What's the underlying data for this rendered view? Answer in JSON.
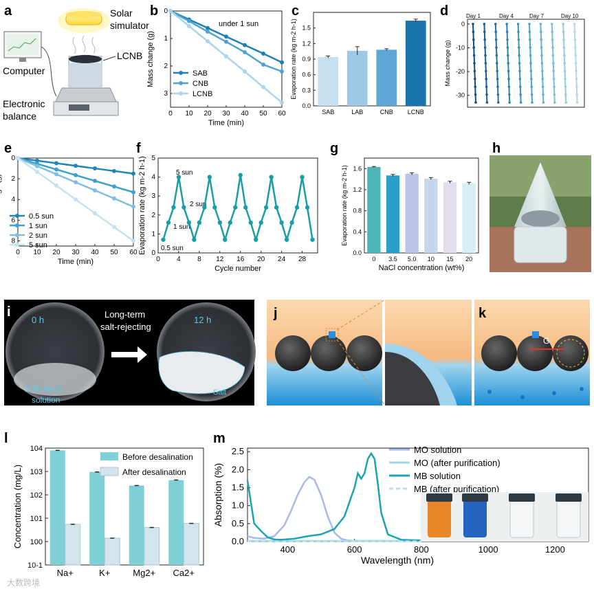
{
  "panels": {
    "a": {
      "letter": "a",
      "solar": "Solar\nsimulator",
      "solar1": "Solar",
      "solar2": "simulator",
      "lcnb": "LCNB",
      "computer": "Computer",
      "balance1": "Electronic",
      "balance2": "balance"
    },
    "b": {
      "letter": "b",
      "note": "under 1 sun"
    },
    "c": {
      "letter": "c"
    },
    "d": {
      "letter": "d",
      "days": [
        "Day 1",
        "Day 4",
        "Day 7",
        "Day 10"
      ]
    },
    "e": {
      "letter": "e"
    },
    "f": {
      "letter": "f",
      "annotations": [
        "5 sun",
        "2 sun",
        "1 sun",
        "0.5 sun"
      ]
    },
    "g": {
      "letter": "g"
    },
    "h": {
      "letter": "h"
    },
    "i": {
      "letter": "i",
      "t0": "0 h",
      "t12": "12 h",
      "arrow1": "Long-term",
      "arrow2": "salt-rejecting",
      "nacl1": "20% NaCl",
      "nacl2": "solution",
      "salt": "Salt"
    },
    "j": {
      "letter": "j"
    },
    "k": {
      "letter": "k",
      "gs": "G"
    },
    "l": {
      "letter": "l"
    },
    "m": {
      "letter": "m"
    }
  },
  "watermark": "大数跨境",
  "chart_data": [
    {
      "id": "b",
      "type": "line",
      "xlabel": "Time (min)",
      "ylabel": "Mass change (g)",
      "x": [
        0,
        10,
        20,
        30,
        40,
        50,
        60
      ],
      "xticks": [
        0,
        10,
        20,
        30,
        40,
        50,
        60
      ],
      "yticks": [
        0,
        1,
        2,
        3
      ],
      "ylim": [
        0,
        3.5
      ],
      "series": [
        {
          "name": "SAB",
          "values": [
            0,
            0.31,
            0.62,
            0.93,
            1.24,
            1.55,
            1.87
          ],
          "color": "#1e7fb8"
        },
        {
          "name": "CNB",
          "values": [
            0,
            0.37,
            0.75,
            1.12,
            1.5,
            1.95,
            2.2
          ],
          "color": "#4fa3cf"
        },
        {
          "name": "LCNB",
          "values": [
            0,
            0.55,
            1.1,
            1.65,
            2.2,
            2.77,
            3.33
          ],
          "color": "#a9d4ec"
        }
      ]
    },
    {
      "id": "c",
      "type": "bar",
      "xlabel": "",
      "ylabel": "Evaporation rate (kg m-2 h-1)",
      "categories": [
        "SAB",
        "LAB",
        "CNB",
        "LCNB"
      ],
      "values": [
        0.94,
        1.06,
        1.08,
        1.64
      ],
      "errors": [
        0.02,
        0.08,
        0.02,
        0.03
      ],
      "colors": [
        "#c6dff1",
        "#9dc9e6",
        "#5ea6d6",
        "#1a72aa"
      ],
      "yticks": [
        0.0,
        0.3,
        0.6,
        0.9,
        1.2,
        1.5
      ],
      "ylim": [
        0,
        1.8
      ]
    },
    {
      "id": "d",
      "type": "line",
      "xlabel": "",
      "ylabel": "Mass change (g)",
      "yticks": [
        0,
        -10,
        -20,
        -30
      ],
      "ylim": [
        -35,
        2
      ],
      "days": 10,
      "end_value": -33
    },
    {
      "id": "e",
      "type": "line",
      "xlabel": "Time (min)",
      "ylabel": "Mass change (g)",
      "x": [
        0,
        10,
        20,
        30,
        40,
        50,
        60
      ],
      "xticks": [
        0,
        10,
        20,
        30,
        40,
        50,
        60
      ],
      "yticks": [
        0,
        2,
        4,
        6,
        8
      ],
      "ylim": [
        0,
        8.5
      ],
      "series": [
        {
          "name": "0.5 sun",
          "values": [
            0,
            0.25,
            0.5,
            0.75,
            1.0,
            1.25,
            1.5
          ],
          "color": "#1e86b8"
        },
        {
          "name": "1 sun",
          "values": [
            0,
            0.55,
            1.1,
            1.65,
            2.2,
            2.75,
            3.3
          ],
          "color": "#3d9fcc"
        },
        {
          "name": "2 sun",
          "values": [
            0,
            0.78,
            1.56,
            2.34,
            3.12,
            3.9,
            4.7
          ],
          "color": "#7fbedf"
        },
        {
          "name": "5 sun",
          "values": [
            0,
            1.33,
            2.66,
            4.0,
            5.33,
            6.66,
            8.0
          ],
          "color": "#c3e2f1"
        }
      ]
    },
    {
      "id": "f",
      "type": "line",
      "xlabel": "Cycle number",
      "ylabel": "Evaporation rate (kg m-2 h-1)",
      "x": [
        1,
        2,
        3,
        4,
        5,
        6,
        7,
        8,
        9,
        10,
        11,
        12,
        13,
        14,
        15,
        16,
        17,
        18,
        19,
        20,
        21,
        22,
        23,
        24,
        25,
        26,
        27,
        28,
        29,
        30
      ],
      "values": [
        0.7,
        1.6,
        2.4,
        4.0,
        2.4,
        1.6,
        0.7,
        1.6,
        2.4,
        4.0,
        2.4,
        1.6,
        0.7,
        1.6,
        2.4,
        4.1,
        2.4,
        1.6,
        0.7,
        1.6,
        2.4,
        4.0,
        2.4,
        1.6,
        0.7,
        1.6,
        2.4,
        4.0,
        2.4,
        0.7
      ],
      "xticks": [
        0,
        4,
        8,
        12,
        16,
        20,
        24,
        28
      ],
      "yticks": [
        0,
        1,
        2,
        3,
        4,
        5
      ],
      "ylim": [
        0,
        5
      ],
      "color": "#1a9da3"
    },
    {
      "id": "g",
      "type": "bar",
      "xlabel": "NaCl concentration (wt%)",
      "ylabel": "Evaporation rate (kg m-2 h-1)",
      "categories": [
        "0",
        "3.5",
        "5.0",
        "10",
        "15",
        "20"
      ],
      "values": [
        1.63,
        1.47,
        1.5,
        1.41,
        1.34,
        1.32
      ],
      "errors": [
        0.01,
        0.02,
        0.02,
        0.02,
        0.02,
        0.02
      ],
      "colors": [
        "#4db5b5",
        "#2aa0c8",
        "#b9c4e6",
        "#c7d6ec",
        "#e3dcef",
        "#d8eef6"
      ],
      "yticks": [
        0.0,
        0.4,
        0.8,
        1.2,
        1.6
      ],
      "ylim": [
        0,
        1.8
      ]
    },
    {
      "id": "l",
      "type": "bar",
      "xlabel": "",
      "ylabel": "Concentration (mg/L)",
      "scale": "log",
      "categories": [
        "Na+",
        "K+",
        "Mg2+",
        "Ca2+"
      ],
      "series": [
        {
          "name": "Before desalination",
          "values": [
            8000,
            950,
            250,
            430
          ],
          "color": "#7ecfd6"
        },
        {
          "name": "After desalination",
          "values": [
            5.5,
            1.4,
            4.0,
            6.0
          ],
          "color": "#d3e4ec"
        }
      ],
      "yticks": [
        "10-1",
        "100",
        "101",
        "102",
        "103",
        "104"
      ],
      "ylim": [
        0.1,
        10000
      ]
    },
    {
      "id": "m",
      "type": "line",
      "xlabel": "Wavelength (nm)",
      "ylabel": "Absorption (%)",
      "xticks": [
        400,
        600,
        800,
        1000,
        1200
      ],
      "yticks": [
        0.0,
        0.5,
        1.0,
        1.5,
        2.0,
        2.5
      ],
      "xlim": [
        280,
        1300
      ],
      "ylim": [
        0,
        2.6
      ],
      "series": [
        {
          "name": "MO solution",
          "color": "#a9b8e6",
          "x": [
            280,
            300,
            330,
            360,
            390,
            410,
            430,
            450,
            465,
            480,
            500,
            520,
            540,
            560,
            580,
            600,
            700,
            800
          ],
          "values": [
            0.15,
            0.1,
            0.08,
            0.15,
            0.45,
            0.85,
            1.3,
            1.65,
            1.8,
            1.72,
            1.3,
            0.7,
            0.25,
            0.08,
            0.03,
            0.02,
            0.02,
            0.02
          ]
        },
        {
          "name": "MO (after purification)",
          "color": "#9fd6e6",
          "x": [
            280,
            800
          ],
          "values": [
            0.02,
            0.02
          ]
        },
        {
          "name": "MB solution",
          "color": "#1aa3b0",
          "x": [
            280,
            290,
            300,
            320,
            340,
            360,
            380,
            420,
            460,
            500,
            540,
            570,
            600,
            610,
            620,
            630,
            640,
            650,
            660,
            670,
            680,
            700,
            740,
            800
          ],
          "values": [
            1.7,
            1.1,
            0.5,
            0.3,
            0.12,
            0.06,
            0.05,
            0.08,
            0.15,
            0.2,
            0.35,
            0.7,
            1.5,
            1.9,
            1.75,
            1.9,
            2.3,
            2.45,
            2.3,
            1.6,
            0.8,
            0.2,
            0.05,
            0.03
          ]
        },
        {
          "name": "MB (after purification)",
          "color": "#b6e0ec",
          "x": [
            280,
            800
          ],
          "values": [
            0.01,
            0.01
          ]
        }
      ]
    }
  ]
}
